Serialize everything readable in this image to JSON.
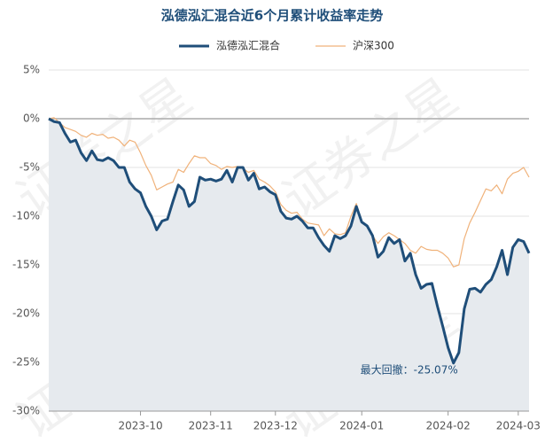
{
  "chart_data": {
    "type": "line",
    "title": "泓德泓汇混合近6个月累计收益率走势",
    "watermark": "证券之星",
    "annotation": "最大回撤：-25.07%",
    "annotation_index": 75,
    "categories": [
      null,
      null,
      null,
      null,
      null,
      null,
      null,
      null,
      null,
      null,
      null,
      null,
      null,
      null,
      null,
      null,
      null,
      "2023-10",
      null,
      null,
      null,
      null,
      null,
      null,
      null,
      null,
      null,
      null,
      null,
      null,
      "2023-11",
      null,
      null,
      null,
      null,
      null,
      null,
      null,
      null,
      null,
      null,
      null,
      "2023-12",
      null,
      null,
      null,
      null,
      null,
      null,
      null,
      null,
      null,
      null,
      null,
      null,
      null,
      null,
      null,
      "2024-01",
      null,
      null,
      null,
      null,
      null,
      null,
      null,
      null,
      null,
      null,
      null,
      null,
      null,
      null,
      null,
      "2024-02",
      null,
      null,
      null,
      null,
      null,
      null,
      null,
      null,
      null,
      null,
      null,
      null,
      "2024-03",
      null,
      null
    ],
    "series": [
      {
        "name": "泓德泓汇混合",
        "color": "#1f4e79",
        "area_color": "#e6eaee",
        "values": [
          0,
          -0.3,
          -0.4,
          -1.5,
          -2.4,
          -2.2,
          -3.5,
          -4.3,
          -3.3,
          -4.2,
          -4.3,
          -4,
          -4.3,
          -5,
          -5,
          -6.5,
          -7.2,
          -7.6,
          -9,
          -10,
          -11.4,
          -10.5,
          -10.3,
          -8.5,
          -6.8,
          -7.3,
          -9,
          -8.5,
          -6,
          -6.3,
          -6.2,
          -6.4,
          -6.2,
          -5.3,
          -6.5,
          -5,
          -5,
          -6.3,
          -5.6,
          -7.2,
          -7,
          -7.5,
          -7.8,
          -9.5,
          -10.2,
          -10.3,
          -10,
          -10.5,
          -11.2,
          -11.2,
          -12.2,
          -13,
          -13.6,
          -12,
          -12.3,
          -12,
          -11,
          -9,
          -10.6,
          -11,
          -12,
          -14.2,
          -13.6,
          -12.2,
          -12.8,
          -12.4,
          -14.6,
          -13.8,
          -16,
          -17.4,
          -17,
          -16.9,
          -19.2,
          -21.3,
          -23.5,
          -25.07,
          -24,
          -19.5,
          -17.5,
          -17.4,
          -17.8,
          -17,
          -16.5,
          -15.2,
          -13.5,
          -16,
          -13.2,
          -12.4,
          -12.6,
          -13.8
        ]
      },
      {
        "name": "沪深300",
        "color": "#f0b27a",
        "values": [
          0,
          0.1,
          -0.4,
          -0.9,
          -1.1,
          -1.3,
          -1.7,
          -1.9,
          -1.5,
          -1.7,
          -1.6,
          -2,
          -1.9,
          -2.2,
          -2.8,
          -2.2,
          -2.4,
          -3.5,
          -4.8,
          -5.8,
          -7.3,
          -7,
          -6.7,
          -6.5,
          -5.2,
          -5.5,
          -4.6,
          -3.8,
          -4,
          -4,
          -4.6,
          -4.8,
          -5.2,
          -4.9,
          -5,
          -4.9,
          -5.1,
          -5.5,
          -5.3,
          -6.2,
          -6.5,
          -6.9,
          -7.5,
          -8.8,
          -9.4,
          -9.7,
          -9.6,
          -10.3,
          -10.7,
          -10.8,
          -10.9,
          -12,
          -11.3,
          -11.8,
          -11.9,
          -11.7,
          -10,
          -8.7,
          -10.5,
          -11,
          -12,
          -12.8,
          -12.1,
          -11.7,
          -12,
          -12.4,
          -12.8,
          -13.5,
          -13.8,
          -13.1,
          -13.4,
          -13.5,
          -13.5,
          -13.8,
          -14.3,
          -15.2,
          -15,
          -12.3,
          -10.7,
          -9.6,
          -8.4,
          -7.2,
          -7.4,
          -6.8,
          -7.7,
          -6.2,
          -5.6,
          -5.4,
          -5,
          -6
        ]
      }
    ],
    "ylim": [
      -30,
      5
    ],
    "yticks": [
      {
        "value": -30,
        "label": "-30%"
      },
      {
        "value": -25,
        "label": "-25%"
      },
      {
        "value": -20,
        "label": "-20%"
      },
      {
        "value": -15,
        "label": "-15%"
      },
      {
        "value": -10,
        "label": "-10%"
      },
      {
        "value": -5,
        "label": "-5%"
      },
      {
        "value": 0,
        "label": "0%"
      },
      {
        "value": 5,
        "label": "5%"
      }
    ],
    "grid": true
  }
}
